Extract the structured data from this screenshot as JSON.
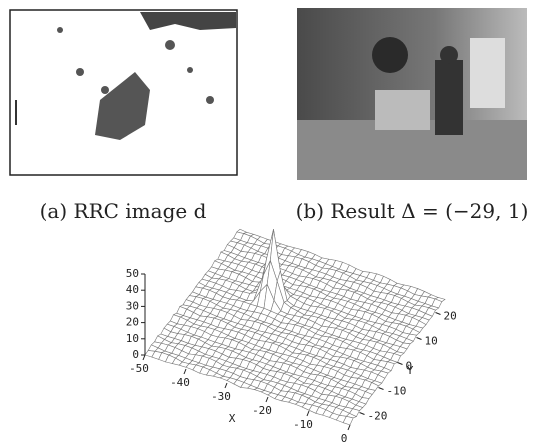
{
  "figures": [
    {
      "caption": "(a) RRC image d"
    },
    {
      "caption": "(b) Result Δ = (−29, 1)"
    }
  ],
  "chart_data": {
    "type": "surface",
    "xlabel": "X",
    "ylabel": "Y",
    "xlim": [
      -50,
      0
    ],
    "xticks": [
      -50,
      -40,
      -30,
      -20,
      -10,
      0
    ],
    "ylim": [
      -25,
      25
    ],
    "yticks": [
      -20,
      -10,
      0,
      10,
      20
    ],
    "zlim": [
      0,
      50
    ],
    "zticks": [
      0,
      10,
      20,
      30,
      40,
      50
    ]
  }
}
